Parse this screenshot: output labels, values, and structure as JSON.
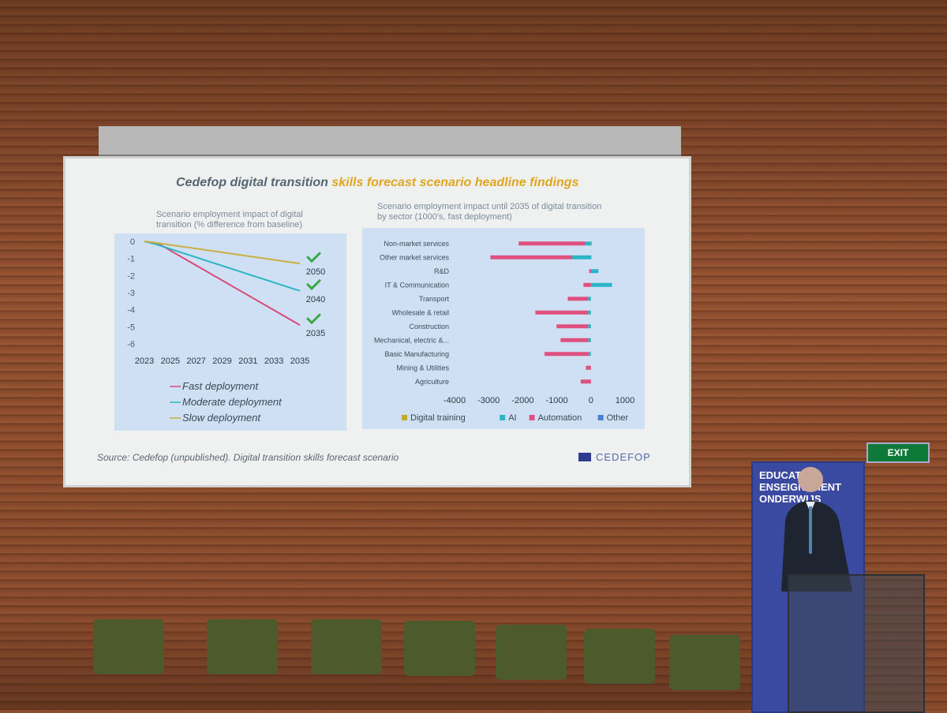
{
  "slide": {
    "title_part1": "Cedefop digital transition",
    "title_part2": "skills forecast scenario headline findings",
    "left_subtitle_line1": "Scenario employment impact of digital",
    "left_subtitle_line2": "transition (% difference from baseline)",
    "right_subtitle_line1": "Scenario employment impact until 2035 of digital transition",
    "right_subtitle_line2": "by sector (1000's, fast deployment)",
    "source": "Source: Cedefop (unpublished). Digital transition skills forecast scenario",
    "logo_text": "CEDEFOP"
  },
  "chart_data": [
    {
      "type": "line",
      "x": [
        2023,
        2025,
        2027,
        2029,
        2031,
        2033,
        2035
      ],
      "ylim": [
        -6,
        0
      ],
      "yticks": [
        0,
        -1,
        -2,
        -3,
        -4,
        -5,
        -6
      ],
      "series": [
        {
          "name": "Fast deployment",
          "color": "#d84a7a",
          "points": [
            [
              2023,
              0
            ],
            [
              2024,
              -0.1
            ],
            [
              2035,
              -4.9
            ]
          ],
          "end_label": "2035"
        },
        {
          "name": "Moderate deployment",
          "color": "#2bb5c5",
          "points": [
            [
              2023,
              0
            ],
            [
              2024,
              -0.2
            ],
            [
              2035,
              -2.9
            ]
          ],
          "end_label": "2040"
        },
        {
          "name": "Slow deployment",
          "color": "#c8b040",
          "points": [
            [
              2023,
              0
            ],
            [
              2024,
              -0.1
            ],
            [
              2035,
              -1.3
            ]
          ],
          "end_label": "2050"
        }
      ],
      "legend_placement": "bottom",
      "checkmark_color": "#3aa84a"
    },
    {
      "type": "bar",
      "orientation": "horizontal",
      "stacked": true,
      "categories": [
        "Non-market services",
        "Other market services",
        "R&D",
        "IT & Communication",
        "Transport",
        "Wholesale & retail",
        "Construction",
        "Mechanical, electric &...",
        "Basic Manufacturing",
        "Mining & Utilities",
        "Agriculture"
      ],
      "xlim": [
        -4000,
        1000
      ],
      "xticks": [
        -4000,
        -3000,
        -2000,
        -1000,
        0,
        1000
      ],
      "series": [
        {
          "name": "Digital training",
          "color": "#c9a830",
          "values": [
            30,
            20,
            0,
            0,
            0,
            0,
            0,
            0,
            0,
            0,
            0
          ]
        },
        {
          "name": "AI",
          "color": "#2bb5c5",
          "values": [
            -170,
            -550,
            220,
            620,
            -80,
            -80,
            -80,
            -70,
            -60,
            0,
            0
          ]
        },
        {
          "name": "Automation",
          "color": "#e0507e",
          "values": [
            -1950,
            -2400,
            -50,
            -220,
            -600,
            -1550,
            -930,
            -820,
            -1300,
            -150,
            -300
          ]
        },
        {
          "name": "Other",
          "color": "#4a7fd6",
          "values": [
            0,
            0,
            0,
            0,
            0,
            0,
            0,
            0,
            0,
            0,
            0
          ]
        }
      ],
      "legend_placement": "bottom"
    }
  ],
  "room": {
    "banner_text": "EDUCATION ENSEIGNEMENT ONDERWIJS",
    "exit_sign": "EXIT"
  }
}
